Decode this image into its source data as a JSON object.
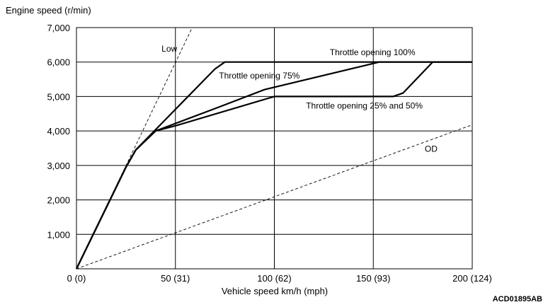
{
  "chart_data": {
    "type": "line",
    "ylabel": "Engine speed (r/min)",
    "xlabel": "Vehicle speed  km/h (mph)",
    "xlim": [
      0,
      200
    ],
    "ylim": [
      0,
      7000
    ],
    "x_ticks": [
      {
        "value": 0,
        "label": "0 (0)"
      },
      {
        "value": 50,
        "label": "50 (31)"
      },
      {
        "value": 100,
        "label": "100 (62)"
      },
      {
        "value": 150,
        "label": "150 (93)"
      },
      {
        "value": 200,
        "label": "200 (124)"
      }
    ],
    "y_ticks": [
      {
        "value": 1000,
        "label": "1,000"
      },
      {
        "value": 2000,
        "label": "2,000"
      },
      {
        "value": 3000,
        "label": "3,000"
      },
      {
        "value": 4000,
        "label": "4,000"
      },
      {
        "value": 5000,
        "label": "5,000"
      },
      {
        "value": 6000,
        "label": "6,000"
      },
      {
        "value": 7000,
        "label": "7,000"
      }
    ],
    "grid": true,
    "series": [
      {
        "name": "Throttle opening 100%",
        "style": "solid",
        "x": [
          0,
          25,
          30,
          70,
          75,
          200
        ],
        "y": [
          0,
          2950,
          3450,
          5800,
          6000,
          6000
        ]
      },
      {
        "name": "Throttle opening 75%",
        "style": "solid",
        "x": [
          0,
          25,
          30,
          40,
          70,
          95,
          100,
          153,
          155,
          180,
          200
        ],
        "y": [
          0,
          2950,
          3450,
          4000,
          4650,
          5200,
          5270,
          6000,
          6000,
          6000,
          6000
        ]
      },
      {
        "name": "Throttle opening 25% and 50%",
        "style": "solid",
        "x": [
          0,
          25,
          30,
          40,
          50,
          100,
          160,
          165,
          180,
          200
        ],
        "y": [
          0,
          2950,
          3450,
          4000,
          4150,
          5000,
          5000,
          5100,
          6000,
          6000
        ]
      },
      {
        "name": "Low",
        "style": "dashed",
        "x": [
          0,
          58.5
        ],
        "y": [
          0,
          7000
        ]
      },
      {
        "name": "OD",
        "style": "dashed",
        "x": [
          0,
          200
        ],
        "y": [
          0,
          4180
        ]
      }
    ],
    "annotations": [
      {
        "text": "Low",
        "x": 43,
        "y": 6300
      },
      {
        "text": "Throttle opening 100%",
        "x": 128,
        "y": 6200
      },
      {
        "text": "Throttle opening 75%",
        "x": 72,
        "y": 5520
      },
      {
        "text": "Throttle opening 25% and 50%",
        "x": 116,
        "y": 4650
      },
      {
        "text": "OD",
        "x": 176,
        "y": 3400
      }
    ],
    "figure_code": "ACD01895AB"
  }
}
